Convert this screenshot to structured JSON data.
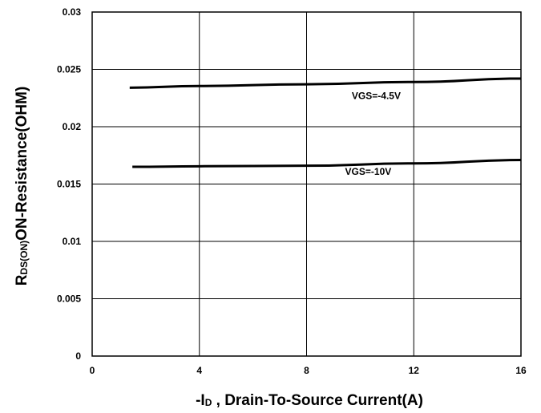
{
  "chart_data": {
    "type": "line",
    "xlabel": {
      "prefix": "-I",
      "sub": "D",
      "rest": " , Drain-To-Source Current(A)"
    },
    "ylabel": {
      "prefix": "R",
      "sub": "DS(ON)",
      "rest": "ON-Resistance(OHM)"
    },
    "xlim": [
      0,
      16
    ],
    "ylim": [
      0,
      0.03
    ],
    "xticks": [
      0,
      4,
      8,
      12,
      16
    ],
    "xtick_labels": [
      "0",
      "4",
      "8",
      "12",
      "16"
    ],
    "yticks": [
      0,
      0.005,
      0.01,
      0.015,
      0.02,
      0.025,
      0.03
    ],
    "ytick_labels": [
      "0",
      "0.005",
      "0.01",
      "0.015",
      "0.02",
      "0.025",
      "0.03"
    ],
    "grid": true,
    "series": [
      {
        "name": "VGS=-4.5V",
        "x": [
          1.4,
          4,
          8,
          12,
          16
        ],
        "y": [
          0.0234,
          0.02355,
          0.0237,
          0.0239,
          0.0242
        ],
        "label_at": [
          10.6,
          0.0224
        ]
      },
      {
        "name": "VGS=-10V",
        "x": [
          1.5,
          4,
          8,
          12,
          16
        ],
        "y": [
          0.0165,
          0.01655,
          0.0166,
          0.0168,
          0.0171
        ],
        "label_at": [
          10.3,
          0.0158
        ]
      }
    ]
  }
}
